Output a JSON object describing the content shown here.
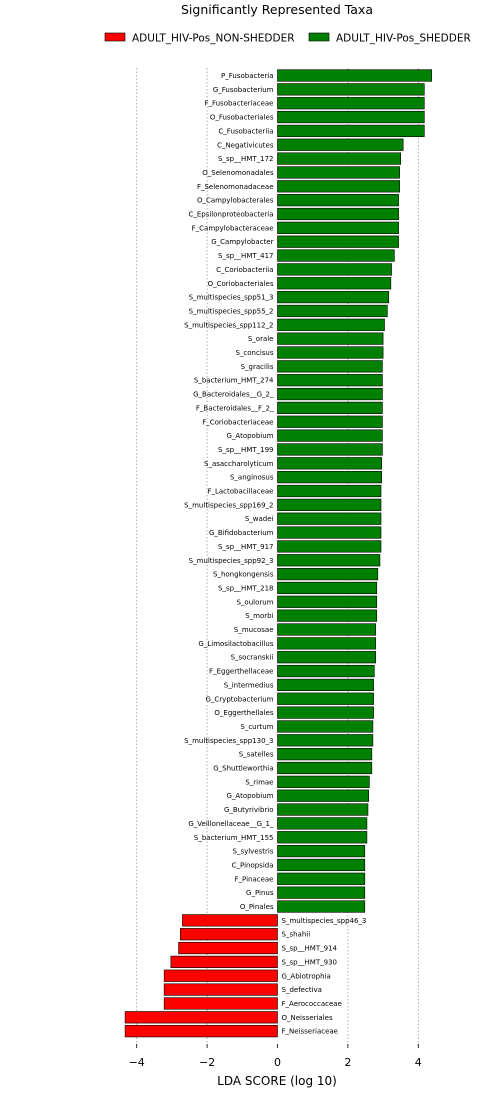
{
  "chart_data": {
    "type": "bar",
    "orientation": "horizontal",
    "title": "Significantly Represented Taxa",
    "xlabel": "LDA SCORE (log 10)",
    "ylabel": "",
    "xlim": [
      -4.4,
      4.5
    ],
    "xticks": [
      -4,
      -2,
      0,
      2,
      4
    ],
    "xtick_labels": [
      "−4",
      "−2",
      "0",
      "2",
      "4"
    ],
    "grid": "vertical dotted at x ticks",
    "legend_position": "top",
    "series": [
      {
        "name": "ADULT_HIV-Pos_NON-SHEDDER",
        "color": "#ff0000"
      },
      {
        "name": "ADULT_HIV-Pos_SHEDDER",
        "color": "#008000"
      }
    ],
    "bars": [
      {
        "label": "P_Fusobacteria",
        "value": 4.38,
        "group": 1
      },
      {
        "label": "G_Fusobacterium",
        "value": 4.17,
        "group": 1
      },
      {
        "label": "F_Fusobacteriaceae",
        "value": 4.17,
        "group": 1
      },
      {
        "label": "O_Fusobacteriales",
        "value": 4.17,
        "group": 1
      },
      {
        "label": "C_Fusobacteriia",
        "value": 4.17,
        "group": 1
      },
      {
        "label": "C_Negativicutes",
        "value": 3.57,
        "group": 1
      },
      {
        "label": "S_sp__HMT_172",
        "value": 3.5,
        "group": 1
      },
      {
        "label": "O_Selenomonadales",
        "value": 3.47,
        "group": 1
      },
      {
        "label": "F_Selenomonadaceae",
        "value": 3.47,
        "group": 1
      },
      {
        "label": "O_Campylobacterales",
        "value": 3.44,
        "group": 1
      },
      {
        "label": "C_Epsilonproteobacteria",
        "value": 3.44,
        "group": 1
      },
      {
        "label": "F_Campylobacteraceae",
        "value": 3.44,
        "group": 1
      },
      {
        "label": "G_Campylobacter",
        "value": 3.44,
        "group": 1
      },
      {
        "label": "S_sp__HMT_417",
        "value": 3.32,
        "group": 1
      },
      {
        "label": "C_Coriobacteriia",
        "value": 3.24,
        "group": 1
      },
      {
        "label": "O_Coriobacteriales",
        "value": 3.22,
        "group": 1
      },
      {
        "label": "S_multispecies_spp51_3",
        "value": 3.16,
        "group": 1
      },
      {
        "label": "S_multispecies_spp55_2",
        "value": 3.12,
        "group": 1
      },
      {
        "label": "S_multispecies_spp112_2",
        "value": 3.04,
        "group": 1
      },
      {
        "label": "S_orale",
        "value": 3.0,
        "group": 1
      },
      {
        "label": "S_concisus",
        "value": 3.0,
        "group": 1
      },
      {
        "label": "S_gracilis",
        "value": 2.98,
        "group": 1
      },
      {
        "label": "S_bacterium_HMT_274",
        "value": 2.98,
        "group": 1
      },
      {
        "label": "G_Bacteroidales__G_2_",
        "value": 2.98,
        "group": 1
      },
      {
        "label": "F_Bacteroidales__F_2_",
        "value": 2.98,
        "group": 1
      },
      {
        "label": "F_Coriobacteriaceae",
        "value": 2.98,
        "group": 1
      },
      {
        "label": "G_Atopobium",
        "value": 2.98,
        "group": 1
      },
      {
        "label": "S_sp__HMT_199",
        "value": 2.98,
        "group": 1
      },
      {
        "label": "S_asaccharolyticum",
        "value": 2.96,
        "group": 1
      },
      {
        "label": "S_anginosus",
        "value": 2.96,
        "group": 1
      },
      {
        "label": "F_Lactobacillaceae",
        "value": 2.94,
        "group": 1
      },
      {
        "label": "S_multispecies_spp169_2",
        "value": 2.94,
        "group": 1
      },
      {
        "label": "S_wadei",
        "value": 2.94,
        "group": 1
      },
      {
        "label": "G_Bifidobacterium",
        "value": 2.94,
        "group": 1
      },
      {
        "label": "S_sp__HMT_917",
        "value": 2.94,
        "group": 1
      },
      {
        "label": "S_multispecies_spp92_3",
        "value": 2.91,
        "group": 1
      },
      {
        "label": "S_hongkongensis",
        "value": 2.85,
        "group": 1
      },
      {
        "label": "S_sp__HMT_218",
        "value": 2.82,
        "group": 1
      },
      {
        "label": "S_oulorum",
        "value": 2.82,
        "group": 1
      },
      {
        "label": "S_morbi",
        "value": 2.82,
        "group": 1
      },
      {
        "label": "S_mucosae",
        "value": 2.79,
        "group": 1
      },
      {
        "label": "G_Limosilactobacillus",
        "value": 2.79,
        "group": 1
      },
      {
        "label": "S_socranskii",
        "value": 2.79,
        "group": 1
      },
      {
        "label": "F_Eggerthellaceae",
        "value": 2.75,
        "group": 1
      },
      {
        "label": "S_intermedius",
        "value": 2.73,
        "group": 1
      },
      {
        "label": "G_Cryptobacterium",
        "value": 2.73,
        "group": 1
      },
      {
        "label": "O_Eggerthellales",
        "value": 2.73,
        "group": 1
      },
      {
        "label": "S_curtum",
        "value": 2.71,
        "group": 1
      },
      {
        "label": "S_multispecies_spp130_3",
        "value": 2.71,
        "group": 1
      },
      {
        "label": "S_satelles",
        "value": 2.68,
        "group": 1
      },
      {
        "label": "G_Shuttleworthia",
        "value": 2.68,
        "group": 1
      },
      {
        "label": "S_rimae",
        "value": 2.61,
        "group": 1
      },
      {
        "label": "G_Atopobium",
        "value": 2.59,
        "group": 1
      },
      {
        "label": "G_Butyrivibrio",
        "value": 2.57,
        "group": 1
      },
      {
        "label": "G_Veillonellaceae__G_1_",
        "value": 2.54,
        "group": 1
      },
      {
        "label": "S_bacterium_HMT_155",
        "value": 2.54,
        "group": 1
      },
      {
        "label": "S_sylvestris",
        "value": 2.48,
        "group": 1
      },
      {
        "label": "C_Pinopsida",
        "value": 2.48,
        "group": 1
      },
      {
        "label": "F_Pinaceae",
        "value": 2.48,
        "group": 1
      },
      {
        "label": "G_Pinus",
        "value": 2.48,
        "group": 1
      },
      {
        "label": "O_Pinales",
        "value": 2.48,
        "group": 1
      },
      {
        "label": "S_multispecies_spp46_3",
        "value": -2.7,
        "group": 0
      },
      {
        "label": "S_shahii",
        "value": -2.76,
        "group": 0
      },
      {
        "label": "S_sp__HMT_914",
        "value": -2.81,
        "group": 0
      },
      {
        "label": "S_sp__HMT_930",
        "value": -3.03,
        "group": 0
      },
      {
        "label": "G_Abiotrophia",
        "value": -3.22,
        "group": 0
      },
      {
        "label": "S_defectiva",
        "value": -3.22,
        "group": 0
      },
      {
        "label": "F_Aerococcaceae",
        "value": -3.22,
        "group": 0
      },
      {
        "label": "O_Neisseriales",
        "value": -4.33,
        "group": 0
      },
      {
        "label": "F_Neisseriaceae",
        "value": -4.33,
        "group": 0
      }
    ]
  }
}
